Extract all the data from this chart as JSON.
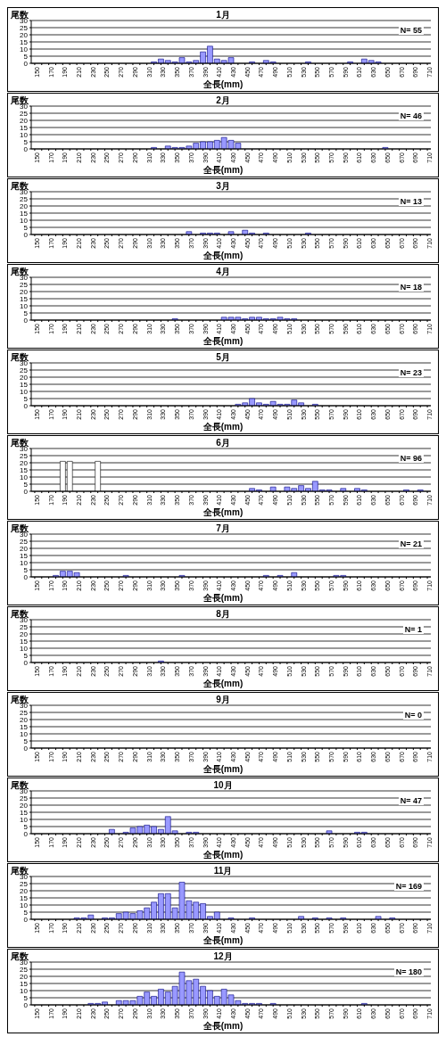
{
  "chart_data": [
    {
      "type": "bar",
      "title": "1月",
      "ylabel": "尾数",
      "xlabel": "全長(mm)",
      "annotations": [
        "N= 55"
      ],
      "color": "#9999ff",
      "ylim": [
        0,
        30
      ],
      "yticks": [
        0,
        5,
        10,
        15,
        20,
        25,
        30
      ],
      "grid": "y",
      "categories": [
        "150",
        null,
        "170",
        null,
        "190",
        null,
        "210",
        null,
        "230",
        null,
        "250",
        null,
        "270",
        null,
        "290",
        null,
        "310",
        null,
        "330",
        null,
        "350",
        null,
        "370",
        null,
        "390",
        null,
        "410",
        null,
        "430",
        null,
        "450",
        null,
        "470",
        null,
        "490",
        null,
        "510",
        null,
        "530",
        null,
        "550",
        null,
        "570",
        null,
        "590",
        null,
        "610",
        null,
        "630",
        null,
        "650",
        null,
        "670",
        null,
        "690",
        null,
        "710"
      ],
      "values": [
        0,
        0,
        0,
        0,
        0,
        0,
        0,
        0,
        0,
        0,
        0,
        0,
        0,
        0,
        0,
        0,
        0,
        1,
        3,
        2,
        1,
        4,
        1,
        2,
        8,
        12,
        3,
        2,
        4,
        0,
        0,
        1,
        0,
        2,
        1,
        0,
        0,
        0,
        0,
        1,
        0,
        0,
        0,
        0,
        0,
        1,
        0,
        3,
        2,
        1,
        0,
        0,
        0,
        0,
        0,
        0,
        0
      ]
    },
    {
      "type": "bar",
      "title": "2月",
      "ylabel": "尾数",
      "xlabel": "全長(mm)",
      "annotations": [
        "N= 46"
      ],
      "color": "#9999ff",
      "ylim": [
        0,
        30
      ],
      "yticks": [
        0,
        5,
        10,
        15,
        20,
        25,
        30
      ],
      "grid": "y",
      "categories": [
        "150",
        null,
        "170",
        null,
        "190",
        null,
        "210",
        null,
        "230",
        null,
        "250",
        null,
        "270",
        null,
        "290",
        null,
        "310",
        null,
        "330",
        null,
        "350",
        null,
        "370",
        null,
        "390",
        null,
        "410",
        null,
        "430",
        null,
        "450",
        null,
        "470",
        null,
        "490",
        null,
        "510",
        null,
        "530",
        null,
        "550",
        null,
        "570",
        null,
        "590",
        null,
        "610",
        null,
        "630",
        null,
        "650",
        null,
        "670",
        null,
        "690",
        null,
        "710"
      ],
      "values": [
        0,
        0,
        0,
        0,
        0,
        0,
        0,
        0,
        0,
        0,
        0,
        0,
        0,
        0,
        0,
        0,
        0,
        1,
        0,
        2,
        1,
        1,
        2,
        4,
        5,
        5,
        6,
        8,
        6,
        4,
        0,
        0,
        0,
        0,
        0,
        0,
        0,
        0,
        0,
        0,
        0,
        0,
        0,
        0,
        0,
        0,
        0,
        0,
        0,
        0,
        1,
        0,
        0,
        0,
        0,
        0,
        0
      ]
    },
    {
      "type": "bar",
      "title": "3月",
      "ylabel": "尾数",
      "xlabel": "全長(mm)",
      "annotations": [
        "N= 13"
      ],
      "color": "#9999ff",
      "ylim": [
        0,
        30
      ],
      "yticks": [
        0,
        5,
        10,
        15,
        20,
        25,
        30
      ],
      "grid": "y",
      "categories": [
        "150",
        null,
        "170",
        null,
        "190",
        null,
        "210",
        null,
        "230",
        null,
        "250",
        null,
        "270",
        null,
        "290",
        null,
        "310",
        null,
        "330",
        null,
        "350",
        null,
        "370",
        null,
        "390",
        null,
        "410",
        null,
        "430",
        null,
        "450",
        null,
        "470",
        null,
        "490",
        null,
        "510",
        null,
        "530",
        null,
        "550",
        null,
        "570",
        null,
        "590",
        null,
        "610",
        null,
        "630",
        null,
        "650",
        null,
        "670",
        null,
        "690",
        null,
        "710"
      ],
      "values": [
        0,
        0,
        0,
        0,
        0,
        0,
        0,
        0,
        0,
        0,
        0,
        0,
        0,
        0,
        0,
        0,
        0,
        0,
        0,
        0,
        0,
        0,
        2,
        0,
        1,
        1,
        1,
        0,
        2,
        0,
        3,
        1,
        0,
        1,
        0,
        0,
        0,
        0,
        0,
        1,
        0,
        0,
        0,
        0,
        0,
        0,
        0,
        0,
        0,
        0,
        0,
        0,
        0,
        0,
        0,
        0,
        0
      ]
    },
    {
      "type": "bar",
      "title": "4月",
      "ylabel": "尾数",
      "xlabel": "全長(mm)",
      "annotations": [
        "N= 18"
      ],
      "color": "#9999ff",
      "ylim": [
        0,
        30
      ],
      "yticks": [
        0,
        5,
        10,
        15,
        20,
        25,
        30
      ],
      "grid": "y",
      "categories": [
        "150",
        null,
        "170",
        null,
        "190",
        null,
        "210",
        null,
        "230",
        null,
        "250",
        null,
        "270",
        null,
        "290",
        null,
        "310",
        null,
        "330",
        null,
        "350",
        null,
        "370",
        null,
        "390",
        null,
        "410",
        null,
        "430",
        null,
        "450",
        null,
        "470",
        null,
        "490",
        null,
        "510",
        null,
        "530",
        null,
        "550",
        null,
        "570",
        null,
        "590",
        null,
        "610",
        null,
        "630",
        null,
        "650",
        null,
        "670",
        null,
        "690",
        null,
        "710"
      ],
      "values": [
        0,
        0,
        0,
        0,
        0,
        0,
        0,
        0,
        0,
        0,
        0,
        0,
        0,
        0,
        0,
        0,
        0,
        0,
        0,
        0,
        1,
        0,
        0,
        0,
        0,
        0,
        0,
        2,
        2,
        2,
        1,
        2,
        2,
        1,
        1,
        2,
        1,
        1,
        0,
        0,
        0,
        0,
        0,
        0,
        0,
        0,
        0,
        0,
        0,
        0,
        0,
        0,
        0,
        0,
        0,
        0,
        0
      ]
    },
    {
      "type": "bar",
      "title": "5月",
      "ylabel": "尾数",
      "xlabel": "全長(mm)",
      "annotations": [
        "N= 23"
      ],
      "color": "#9999ff",
      "ylim": [
        0,
        30
      ],
      "yticks": [
        0,
        5,
        10,
        15,
        20,
        25,
        30
      ],
      "grid": "y",
      "categories": [
        "150",
        null,
        "170",
        null,
        "190",
        null,
        "210",
        null,
        "230",
        null,
        "250",
        null,
        "270",
        null,
        "290",
        null,
        "310",
        null,
        "330",
        null,
        "350",
        null,
        "370",
        null,
        "390",
        null,
        "410",
        null,
        "430",
        null,
        "450",
        null,
        "470",
        null,
        "490",
        null,
        "510",
        null,
        "530",
        null,
        "550",
        null,
        "570",
        null,
        "590",
        null,
        "610",
        null,
        "630",
        null,
        "650",
        null,
        "670",
        null,
        "690",
        null,
        "710"
      ],
      "values": [
        0,
        0,
        0,
        0,
        0,
        0,
        0,
        0,
        0,
        0,
        0,
        0,
        0,
        0,
        0,
        0,
        0,
        0,
        0,
        0,
        0,
        0,
        0,
        0,
        0,
        0,
        0,
        0,
        0,
        1,
        2,
        5,
        2,
        1,
        3,
        1,
        1,
        4,
        2,
        0,
        1,
        0,
        0,
        0,
        0,
        0,
        0,
        0,
        0,
        0,
        0,
        0,
        0,
        0,
        0,
        0,
        0
      ]
    },
    {
      "type": "bar",
      "title": "6月",
      "ylabel": "尾数",
      "xlabel": "全長(mm)",
      "annotations": [
        "N= 96"
      ],
      "ylim": [
        0,
        30
      ],
      "yticks": [
        0,
        5,
        10,
        15,
        20,
        25,
        30
      ],
      "grid": "y",
      "categories": [
        "150",
        null,
        "170",
        null,
        "190",
        null,
        "210",
        null,
        "230",
        null,
        "250",
        null,
        "270",
        null,
        "290",
        null,
        "310",
        null,
        "330",
        null,
        "350",
        null,
        "370",
        null,
        "390",
        null,
        "410",
        null,
        "430",
        null,
        "450",
        null,
        "470",
        null,
        "490",
        null,
        "510",
        null,
        "530",
        null,
        "550",
        null,
        "570",
        null,
        "590",
        null,
        "610",
        null,
        "630",
        null,
        "650",
        null,
        "670",
        null,
        "690",
        null,
        "710"
      ],
      "values": [
        0,
        0,
        0,
        0,
        21,
        21,
        0,
        0,
        0,
        21,
        0,
        0,
        0,
        0,
        0,
        0,
        0,
        0,
        0,
        0,
        0,
        0,
        0,
        0,
        0,
        0,
        0,
        0,
        0,
        0,
        0,
        2,
        1,
        0,
        3,
        0,
        3,
        2,
        4,
        2,
        7,
        1,
        1,
        0,
        2,
        0,
        2,
        1,
        0,
        0,
        0,
        0,
        0,
        1,
        0,
        1,
        0
      ],
      "colors": [
        "#9999ff",
        "#9999ff",
        "#9999ff",
        "#9999ff",
        "#ffffff",
        "#ffffff",
        "#9999ff",
        "#9999ff",
        "#9999ff",
        "#ffffff",
        "#9999ff",
        "#9999ff",
        "#9999ff",
        "#9999ff",
        "#9999ff",
        "#9999ff",
        "#9999ff",
        "#9999ff",
        "#9999ff",
        "#9999ff",
        "#9999ff",
        "#9999ff",
        "#9999ff",
        "#9999ff",
        "#9999ff",
        "#9999ff",
        "#9999ff",
        "#9999ff",
        "#9999ff",
        "#9999ff",
        "#9999ff",
        "#9999ff",
        "#9999ff",
        "#9999ff",
        "#9999ff",
        "#9999ff",
        "#9999ff",
        "#9999ff",
        "#9999ff",
        "#9999ff",
        "#9999ff",
        "#9999ff",
        "#9999ff",
        "#9999ff",
        "#9999ff",
        "#9999ff",
        "#9999ff",
        "#9999ff",
        "#9999ff",
        "#9999ff",
        "#9999ff",
        "#9999ff",
        "#9999ff",
        "#9999ff",
        "#9999ff",
        "#9999ff",
        "#9999ff"
      ]
    },
    {
      "type": "bar",
      "title": "7月",
      "ylabel": "尾数",
      "xlabel": "全長(mm)",
      "annotations": [
        "N= 21"
      ],
      "color": "#9999ff",
      "ylim": [
        0,
        30
      ],
      "yticks": [
        0,
        5,
        10,
        15,
        20,
        25,
        30
      ],
      "grid": "y",
      "categories": [
        "150",
        null,
        "170",
        null,
        "190",
        null,
        "210",
        null,
        "230",
        null,
        "250",
        null,
        "270",
        null,
        "290",
        null,
        "310",
        null,
        "330",
        null,
        "350",
        null,
        "370",
        null,
        "390",
        null,
        "410",
        null,
        "430",
        null,
        "450",
        null,
        "470",
        null,
        "490",
        null,
        "510",
        null,
        "530",
        null,
        "550",
        null,
        "570",
        null,
        "590",
        null,
        "610",
        null,
        "630",
        null,
        "650",
        null,
        "670",
        null,
        "690",
        null,
        "710"
      ],
      "values": [
        0,
        0,
        0,
        1,
        4,
        4,
        3,
        0,
        0,
        0,
        0,
        0,
        0,
        1,
        0,
        0,
        0,
        0,
        0,
        0,
        0,
        1,
        0,
        0,
        0,
        0,
        0,
        0,
        0,
        0,
        0,
        0,
        0,
        1,
        0,
        1,
        0,
        3,
        0,
        0,
        0,
        0,
        0,
        1,
        1,
        0,
        0,
        0,
        0,
        0,
        0,
        0,
        0,
        0,
        0,
        0,
        0
      ]
    },
    {
      "type": "bar",
      "title": "8月",
      "ylabel": "尾数",
      "xlabel": "全長(mm)",
      "annotations": [
        "N= 1"
      ],
      "color": "#9999ff",
      "ylim": [
        0,
        30
      ],
      "yticks": [
        0,
        5,
        10,
        15,
        20,
        25,
        30
      ],
      "grid": "y",
      "categories": [
        "150",
        null,
        "170",
        null,
        "190",
        null,
        "210",
        null,
        "230",
        null,
        "250",
        null,
        "270",
        null,
        "290",
        null,
        "310",
        null,
        "330",
        null,
        "350",
        null,
        "370",
        null,
        "390",
        null,
        "410",
        null,
        "430",
        null,
        "450",
        null,
        "470",
        null,
        "490",
        null,
        "510",
        null,
        "530",
        null,
        "550",
        null,
        "570",
        null,
        "590",
        null,
        "610",
        null,
        "630",
        null,
        "650",
        null,
        "670",
        null,
        "690",
        null,
        "710"
      ],
      "values": [
        0,
        0,
        0,
        0,
        0,
        0,
        0,
        0,
        0,
        0,
        0,
        0,
        0,
        0,
        0,
        0,
        0,
        0,
        1,
        0,
        0,
        0,
        0,
        0,
        0,
        0,
        0,
        0,
        0,
        0,
        0,
        0,
        0,
        0,
        0,
        0,
        0,
        0,
        0,
        0,
        0,
        0,
        0,
        0,
        0,
        0,
        0,
        0,
        0,
        0,
        0,
        0,
        0,
        0,
        0,
        0,
        0
      ]
    },
    {
      "type": "bar",
      "title": "9月",
      "ylabel": "尾数",
      "xlabel": "全長(mm)",
      "annotations": [
        "N= 0"
      ],
      "color": "#9999ff",
      "ylim": [
        0,
        30
      ],
      "yticks": [
        0,
        5,
        10,
        15,
        20,
        25,
        30
      ],
      "grid": "y",
      "categories": [
        "150",
        null,
        "170",
        null,
        "190",
        null,
        "210",
        null,
        "230",
        null,
        "250",
        null,
        "270",
        null,
        "290",
        null,
        "310",
        null,
        "330",
        null,
        "350",
        null,
        "370",
        null,
        "390",
        null,
        "410",
        null,
        "430",
        null,
        "450",
        null,
        "470",
        null,
        "490",
        null,
        "510",
        null,
        "530",
        null,
        "550",
        null,
        "570",
        null,
        "590",
        null,
        "610",
        null,
        "630",
        null,
        "650",
        null,
        "670",
        null,
        "690",
        null,
        "710"
      ],
      "values": [
        0,
        0,
        0,
        0,
        0,
        0,
        0,
        0,
        0,
        0,
        0,
        0,
        0,
        0,
        0,
        0,
        0,
        0,
        0,
        0,
        0,
        0,
        0,
        0,
        0,
        0,
        0,
        0,
        0,
        0,
        0,
        0,
        0,
        0,
        0,
        0,
        0,
        0,
        0,
        0,
        0,
        0,
        0,
        0,
        0,
        0,
        0,
        0,
        0,
        0,
        0,
        0,
        0,
        0,
        0,
        0,
        0
      ]
    },
    {
      "type": "bar",
      "title": "10月",
      "ylabel": "尾数",
      "xlabel": "全長(mm)",
      "annotations": [
        "N= 47"
      ],
      "color": "#9999ff",
      "ylim": [
        0,
        30
      ],
      "yticks": [
        0,
        5,
        10,
        15,
        20,
        25,
        30
      ],
      "grid": "y",
      "categories": [
        "150",
        null,
        "170",
        null,
        "190",
        null,
        "210",
        null,
        "230",
        null,
        "250",
        null,
        "270",
        null,
        "290",
        null,
        "310",
        null,
        "330",
        null,
        "350",
        null,
        "370",
        null,
        "390",
        null,
        "410",
        null,
        "430",
        null,
        "450",
        null,
        "470",
        null,
        "490",
        null,
        "510",
        null,
        "530",
        null,
        "550",
        null,
        "570",
        null,
        "590",
        null,
        "610",
        null,
        "630",
        null,
        "650",
        null,
        "670",
        null,
        "690",
        null,
        "710"
      ],
      "values": [
        0,
        0,
        0,
        0,
        0,
        0,
        0,
        0,
        0,
        0,
        0,
        3,
        0,
        1,
        4,
        5,
        6,
        5,
        3,
        12,
        2,
        0,
        1,
        1,
        0,
        0,
        0,
        0,
        0,
        0,
        0,
        0,
        0,
        0,
        0,
        0,
        0,
        0,
        0,
        0,
        0,
        0,
        2,
        0,
        0,
        0,
        1,
        1,
        0,
        0,
        0,
        0,
        0,
        0,
        0,
        0,
        0
      ]
    },
    {
      "type": "bar",
      "title": "11月",
      "ylabel": "尾数",
      "xlabel": "全長(mm)",
      "annotations": [
        "N= 169"
      ],
      "color": "#9999ff",
      "ylim": [
        0,
        30
      ],
      "yticks": [
        0,
        5,
        10,
        15,
        20,
        25,
        30
      ],
      "grid": "y",
      "categories": [
        "150",
        null,
        "170",
        null,
        "190",
        null,
        "210",
        null,
        "230",
        null,
        "250",
        null,
        "270",
        null,
        "290",
        null,
        "310",
        null,
        "330",
        null,
        "350",
        null,
        "370",
        null,
        "390",
        null,
        "410",
        null,
        "430",
        null,
        "450",
        null,
        "470",
        null,
        "490",
        null,
        "510",
        null,
        "530",
        null,
        "550",
        null,
        "570",
        null,
        "590",
        null,
        "610",
        null,
        "630",
        null,
        "650",
        null,
        "670",
        null,
        "690",
        null,
        "710"
      ],
      "values": [
        0,
        0,
        0,
        0,
        0,
        0,
        1,
        1,
        3,
        0,
        1,
        1,
        4,
        5,
        4,
        6,
        8,
        12,
        18,
        18,
        8,
        26,
        13,
        12,
        11,
        2,
        5,
        0,
        1,
        0,
        0,
        1,
        0,
        0,
        0,
        0,
        0,
        0,
        2,
        0,
        1,
        0,
        1,
        0,
        1,
        0,
        0,
        0,
        0,
        2,
        0,
        1,
        0,
        0,
        0,
        0,
        0
      ]
    },
    {
      "type": "bar",
      "title": "12月",
      "ylabel": "尾数",
      "xlabel": "全長(mm)",
      "annotations": [
        "N= 180"
      ],
      "color": "#9999ff",
      "ylim": [
        0,
        30
      ],
      "yticks": [
        0,
        5,
        10,
        15,
        20,
        25,
        30
      ],
      "grid": "y",
      "categories": [
        "150",
        null,
        "170",
        null,
        "190",
        null,
        "210",
        null,
        "230",
        null,
        "250",
        null,
        "270",
        null,
        "290",
        null,
        "310",
        null,
        "330",
        null,
        "350",
        null,
        "370",
        null,
        "390",
        null,
        "410",
        null,
        "430",
        null,
        "450",
        null,
        "470",
        null,
        "490",
        null,
        "510",
        null,
        "530",
        null,
        "550",
        null,
        "570",
        null,
        "590",
        null,
        "610",
        null,
        "630",
        null,
        "650",
        null,
        "670",
        null,
        "690",
        null,
        "710"
      ],
      "values": [
        0,
        0,
        0,
        0,
        0,
        0,
        0,
        0,
        1,
        1,
        2,
        0,
        3,
        3,
        3,
        6,
        9,
        6,
        11,
        9,
        13,
        23,
        17,
        18,
        13,
        10,
        6,
        11,
        7,
        3,
        1,
        1,
        1,
        0,
        1,
        0,
        0,
        0,
        0,
        0,
        0,
        0,
        0,
        0,
        0,
        0,
        0,
        1,
        0,
        0,
        0,
        0,
        0,
        0,
        0,
        0,
        0
      ]
    }
  ]
}
